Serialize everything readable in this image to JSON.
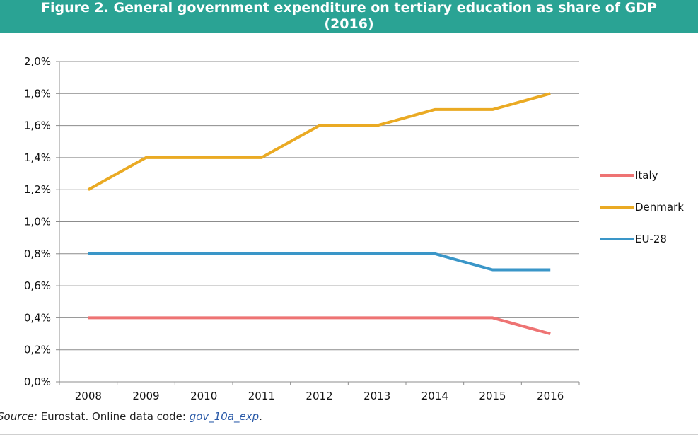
{
  "chart_data": {
    "type": "line",
    "title_line1": "Figure 2. General government expenditure on tertiary education as share of GDP",
    "title_line2": "(2016)",
    "categories": [
      "2008",
      "2009",
      "2010",
      "2011",
      "2012",
      "2013",
      "2014",
      "2015",
      "2016"
    ],
    "series": [
      {
        "name": "Italy",
        "color": "#ee7373",
        "values": [
          0.4,
          0.4,
          0.4,
          0.4,
          0.4,
          0.4,
          0.4,
          0.4,
          0.3
        ]
      },
      {
        "name": "Denmark",
        "color": "#eaaa23",
        "values": [
          1.2,
          1.4,
          1.4,
          1.4,
          1.6,
          1.6,
          1.7,
          1.7,
          1.8
        ]
      },
      {
        "name": "EU-28",
        "color": "#3a96c8",
        "values": [
          0.8,
          0.8,
          0.8,
          0.8,
          0.8,
          0.8,
          0.8,
          0.7,
          0.7
        ]
      }
    ],
    "ylim": [
      0,
      2.0
    ],
    "yticks": [
      "0,0%",
      "0,2%",
      "0,4%",
      "0,6%",
      "0,8%",
      "1,0%",
      "1,2%",
      "1,4%",
      "1,6%",
      "1,8%",
      "2,0%"
    ],
    "ytick_values": [
      0,
      0.2,
      0.4,
      0.6,
      0.8,
      1.0,
      1.2,
      1.4,
      1.6,
      1.8,
      2.0
    ],
    "grid": true,
    "legend_position": "right"
  },
  "source": {
    "label": "Source:",
    "text": " Eurostat. Online data code: ",
    "code": "gov_10a_exp",
    "end": "."
  }
}
